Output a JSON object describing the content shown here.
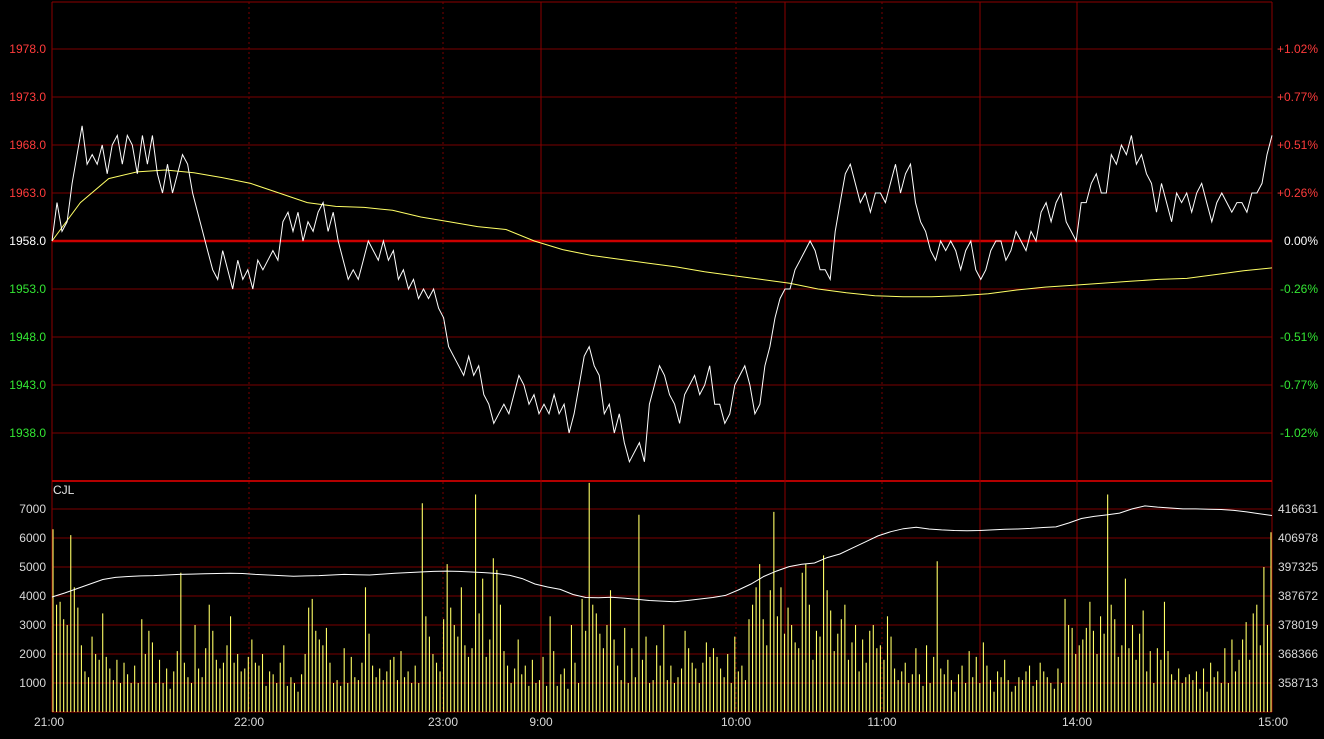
{
  "chart_data": [
    {
      "type": "line",
      "panel": "price",
      "title": "",
      "ylim": [
        1933.0,
        1983.0
      ],
      "base_price": 1958.0,
      "left_ticks": [
        "1978.0",
        "1973.0",
        "1968.0",
        "1963.0",
        "1958.0",
        "1953.0",
        "1948.0",
        "1943.0",
        "1938.0"
      ],
      "right_ticks": [
        "+1.02%",
        "+0.77%",
        "+0.51%",
        "+0.26%",
        "0.00%",
        "-0.26%",
        "-0.51%",
        "-0.77%",
        "-1.02%"
      ],
      "x_labels": [
        "21:00",
        "22:00",
        "23:00",
        "9:00",
        "10:00",
        "11:00",
        "14:00",
        "15:00"
      ],
      "series": [
        {
          "role": "price",
          "values": [
            1958,
            1962,
            1959,
            1960,
            1964,
            1967,
            1970,
            1966,
            1967,
            1966,
            1968,
            1965,
            1968,
            1969,
            1966,
            1969,
            1968,
            1965,
            1969,
            1966,
            1969,
            1965,
            1963,
            1966,
            1963,
            1965,
            1967,
            1966,
            1963,
            1961,
            1959,
            1957,
            1955,
            1954,
            1957,
            1955,
            1953,
            1956,
            1954,
            1955,
            1953,
            1956,
            1955,
            1956,
            1957,
            1956,
            1960,
            1961,
            1959,
            1961,
            1958,
            1960,
            1959,
            1961,
            1962,
            1959,
            1961,
            1958,
            1956,
            1954,
            1955,
            1954,
            1956,
            1958,
            1957,
            1956,
            1958,
            1956,
            1957,
            1954,
            1955,
            1953,
            1954,
            1952,
            1953,
            1952,
            1953,
            1951,
            1950,
            1947,
            1946,
            1945,
            1944,
            1946,
            1944,
            1945,
            1942,
            1941,
            1939,
            1940,
            1941,
            1940,
            1942,
            1944,
            1943,
            1941,
            1942,
            1940,
            1941,
            1940,
            1942,
            1940,
            1941,
            1938,
            1940,
            1943,
            1946,
            1947,
            1945,
            1944,
            1940,
            1941,
            1938,
            1940,
            1937,
            1935,
            1936,
            1937,
            1935,
            1941,
            1943,
            1945,
            1944,
            1942,
            1941,
            1939,
            1942,
            1943,
            1944,
            1942,
            1943,
            1945,
            1941,
            1941,
            1939,
            1940,
            1943,
            1944,
            1945,
            1943,
            1940,
            1941,
            1945,
            1947,
            1950,
            1952,
            1953,
            1953,
            1955,
            1956,
            1957,
            1958,
            1957,
            1955,
            1955,
            1954,
            1959,
            1962,
            1965,
            1966,
            1964,
            1962,
            1963,
            1961,
            1963,
            1963,
            1962,
            1964,
            1966,
            1963,
            1965,
            1966,
            1962,
            1960,
            1959,
            1957,
            1956,
            1958,
            1957,
            1958,
            1957,
            1955,
            1957,
            1958,
            1955,
            1954,
            1955,
            1957,
            1958,
            1958,
            1956,
            1957,
            1959,
            1958,
            1957,
            1959,
            1958,
            1961,
            1962,
            1960,
            1962,
            1963,
            1960,
            1959,
            1958,
            1962,
            1962,
            1964,
            1965,
            1963,
            1963,
            1967,
            1966,
            1968,
            1967,
            1969,
            1966,
            1967,
            1965,
            1964,
            1961,
            1964,
            1962,
            1960,
            1963,
            1962,
            1963,
            1961,
            1963,
            1964,
            1962,
            1960,
            1962,
            1963,
            1962,
            1961,
            1962,
            1962,
            1961,
            1963,
            1963,
            1964,
            1967,
            1969
          ],
          "color": "#ffffff"
        },
        {
          "role": "average",
          "values": [
            1958,
            1962,
            1964.5,
            1965.2,
            1965.4,
            1965.1,
            1964.6,
            1964,
            1963,
            1962,
            1961.6,
            1961.5,
            1961.2,
            1960.5,
            1960,
            1959.5,
            1959.2,
            1958,
            1957.1,
            1956.5,
            1956.1,
            1955.7,
            1955.3,
            1954.8,
            1954.4,
            1954,
            1953.6,
            1953,
            1952.6,
            1952.3,
            1952.2,
            1952.2,
            1952.3,
            1952.5,
            1952.9,
            1953.2,
            1953.4,
            1953.6,
            1953.8,
            1954,
            1954.1,
            1954.5,
            1954.9,
            1955.2
          ],
          "color": "#ffff66"
        }
      ]
    },
    {
      "type": "bar",
      "panel": "volume",
      "title": "CJL",
      "ylim": [
        0,
        8000
      ],
      "left_ticks": [
        "7000",
        "6000",
        "5000",
        "4000",
        "3000",
        "2000",
        "1000"
      ],
      "right_ticks": [
        "416631",
        "406978",
        "397325",
        "387672",
        "378019",
        "368366",
        "358713"
      ],
      "bar_color": "#ffff66",
      "values": [
        6300,
        3700,
        3800,
        3200,
        3000,
        6100,
        4300,
        3600,
        2300,
        1400,
        1200,
        2600,
        2000,
        1800,
        3400,
        1900,
        1500,
        1100,
        1800,
        1000,
        1700,
        1300,
        1000,
        1600,
        1000,
        3200,
        2000,
        2800,
        2400,
        1000,
        1800,
        1000,
        1500,
        800,
        1400,
        2100,
        4800,
        1700,
        1200,
        1000,
        3000,
        1500,
        1200,
        2200,
        3700,
        2800,
        1800,
        1500,
        1700,
        2300,
        3300,
        1700,
        2000,
        1400,
        1500,
        1900,
        2500,
        1700,
        1600,
        2000,
        900,
        1400,
        1300,
        1000,
        1700,
        2300,
        900,
        1200,
        1000,
        700,
        1300,
        2000,
        3600,
        3900,
        2800,
        2500,
        2300,
        2900,
        1700,
        1000,
        1100,
        900,
        2200,
        1000,
        1900,
        1200,
        1100,
        1700,
        4300,
        2700,
        1600,
        1200,
        1500,
        1100,
        1400,
        1800,
        1900,
        1100,
        2100,
        1200,
        1400,
        1000,
        1600,
        1000,
        7200,
        3300,
        2600,
        2000,
        1700,
        1400,
        3200,
        5100,
        3600,
        3000,
        2600,
        4300,
        2300,
        1900,
        2200,
        7500,
        3400,
        4600,
        1900,
        2500,
        5300,
        4900,
        3700,
        2100,
        1600,
        1000,
        1500,
        2500,
        1300,
        1600,
        900,
        1800,
        1000,
        1100,
        1900,
        900,
        3300,
        2100,
        900,
        1300,
        1500,
        800,
        3000,
        1700,
        1000,
        3900,
        2800,
        7900,
        3700,
        3400,
        2700,
        2200,
        3000,
        4200,
        2500,
        1600,
        1100,
        2900,
        1000,
        2200,
        1200,
        6800,
        1800,
        2600,
        1000,
        1100,
        2300,
        1600,
        3000,
        1100,
        1600,
        1000,
        1200,
        1500,
        2800,
        2200,
        1700,
        1500,
        1000,
        1700,
        2400,
        1900,
        2200,
        1900,
        1500,
        1200,
        2000,
        1000,
        2600,
        1400,
        1600,
        1100,
        3200,
        3700,
        4300,
        5100,
        3200,
        2300,
        4200,
        6900,
        3300,
        4300,
        2700,
        3600,
        3000,
        2400,
        2200,
        4800,
        5100,
        3700,
        1800,
        2800,
        2600,
        5400,
        4200,
        3500,
        2100,
        2700,
        3200,
        3700,
        1800,
        2400,
        3000,
        1400,
        2500,
        1700,
        2800,
        3000,
        2200,
        2300,
        1800,
        3300,
        2600,
        1500,
        1100,
        1400,
        1700,
        1000,
        1300,
        2200,
        1300,
        900,
        2300,
        1000,
        1900,
        5200,
        1500,
        1300,
        1800,
        1100,
        700,
        1300,
        1600,
        1000,
        2100,
        1200,
        1900,
        1000,
        2400,
        1600,
        1100,
        700,
        1400,
        1200,
        1800,
        1100,
        700,
        900,
        1200,
        1100,
        1400,
        1600,
        900,
        1100,
        1700,
        1400,
        1200,
        1000,
        800,
        1500,
        1000,
        3900,
        3000,
        2900,
        2000,
        2300,
        2500,
        2900,
        3800,
        2800,
        2000,
        3300,
        2700,
        7500,
        3700,
        3200,
        1900,
        2300,
        4600,
        2200,
        3000,
        1800,
        2700,
        3500,
        1400,
        2100,
        1000,
        2200,
        1800,
        3800,
        2100,
        1300,
        1100,
        1500,
        1000,
        1200,
        1300,
        1100,
        1400,
        800,
        1500,
        700,
        1700,
        1200,
        1400,
        1000,
        2200,
        1000,
        2500,
        1400,
        1800,
        2500,
        3100,
        1800,
        3400,
        3700,
        2300,
        5000,
        3000,
        6200
      ],
      "oi_series": {
        "name": "",
        "values": [
          387672,
          389000,
          390500,
          392000,
          393500,
          394200,
          394500,
          394700,
          394800,
          395000,
          395200,
          395300,
          395400,
          395500,
          395600,
          395500,
          395200,
          395000,
          394800,
          394600,
          394700,
          394800,
          395000,
          395200,
          395100,
          395000,
          395300,
          395600,
          395800,
          396000,
          396200,
          396300,
          396200,
          396000,
          395800,
          395500,
          394900,
          393800,
          392000,
          391000,
          390200,
          388500,
          387500,
          387400,
          387600,
          387300,
          386900,
          386500,
          386300,
          386100,
          386500,
          387000,
          387500,
          388200,
          390000,
          392000,
          394500,
          396300,
          397800,
          398600,
          399000,
          400800,
          402000,
          404000,
          406000,
          408000,
          409400,
          410400,
          410900,
          410300,
          410000,
          409800,
          409700,
          409800,
          410000,
          410200,
          410300,
          410500,
          410800,
          411000,
          412300,
          413800,
          414500,
          415000,
          415600,
          417000,
          418000,
          417600,
          417300,
          417000,
          417000,
          416900,
          416800,
          416500,
          416000,
          415400,
          414800
        ]
      }
    }
  ]
}
